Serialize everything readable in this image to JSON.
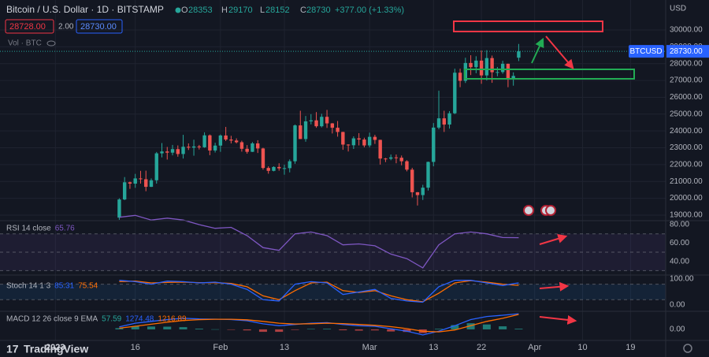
{
  "chart_data": {
    "type": "candlestick",
    "title": "Bitcoin / U.S. Dollar · 1D · BITSTAMP",
    "ohlc_labels": [
      "O",
      "H",
      "L",
      "C"
    ],
    "ohlc_values": [
      28353,
      29170,
      28152,
      28730
    ],
    "change": "+377.00 (+1.33%)",
    "sell_price": "28728.00",
    "spread": "2.00",
    "buy_price": "28730.00",
    "volume_label": "Vol · BTC",
    "price_unit": "USD",
    "symbol_label": "BTCUSD",
    "last_price_label": "28730.00",
    "up_color": "#26a69a",
    "down_color": "#ef5350",
    "grid": true,
    "xlim": [
      -9.4,
      115.6
    ],
    "xticks": [
      {
        "value": 1,
        "label": "2023"
      },
      16,
      {
        "value": 32,
        "label": "Feb"
      },
      {
        "value": 44,
        "label": "13"
      },
      {
        "value": 60,
        "label": "Mar"
      },
      {
        "value": 72,
        "label": "13"
      },
      {
        "value": 81,
        "label": "22"
      },
      {
        "value": 91,
        "label": "Apr"
      },
      {
        "value": 100,
        "label": "10"
      },
      {
        "value": 109,
        "label": "19"
      }
    ],
    "ylim": [
      18670,
      31780
    ],
    "yticks": [
      {
        "value": 19000,
        "label": "19000.00"
      },
      {
        "value": 20000,
        "label": "20000.00"
      },
      {
        "value": 21000,
        "label": "21000.00"
      },
      {
        "value": 22000,
        "label": "22000.00"
      },
      {
        "value": 23000,
        "label": "23000.00"
      },
      {
        "value": 24000,
        "label": "24000.00"
      },
      {
        "value": 25000,
        "label": "25000.00"
      },
      {
        "value": 26000,
        "label": "26000.00"
      },
      {
        "value": 27000,
        "label": "27000.00"
      },
      {
        "value": 28000,
        "label": "28000.00"
      },
      {
        "value": 29000,
        "label": "29000.00"
      },
      {
        "value": 30000,
        "label": "30000.00"
      }
    ],
    "x": [
      13,
      14,
      15,
      16,
      17,
      18,
      19,
      20,
      21,
      22,
      23,
      24,
      25,
      26,
      27,
      28,
      29,
      30,
      31,
      32,
      33,
      34,
      35,
      36,
      37,
      38,
      39,
      40,
      41,
      42,
      43,
      44,
      45,
      46,
      47,
      48,
      49,
      50,
      51,
      52,
      53,
      54,
      55,
      56,
      57,
      58,
      59,
      60,
      61,
      62,
      63,
      64,
      65,
      66,
      67,
      68,
      69,
      70,
      71,
      72,
      73,
      74,
      75,
      76,
      77,
      78,
      79,
      80,
      81,
      82,
      83,
      84,
      85,
      86,
      87,
      88
    ],
    "ohlc": [
      [
        18850,
        20000,
        18720,
        19930
      ],
      [
        19930,
        21260,
        19890,
        20950
      ],
      [
        20950,
        20990,
        20560,
        20870
      ],
      [
        20870,
        21450,
        20620,
        21180
      ],
      [
        21180,
        21630,
        20870,
        21130
      ],
      [
        21130,
        21640,
        20420,
        20680
      ],
      [
        20680,
        21180,
        20670,
        21070
      ],
      [
        21070,
        22750,
        20870,
        22670
      ],
      [
        22670,
        23280,
        22430,
        22780
      ],
      [
        22780,
        23050,
        22300,
        22710
      ],
      [
        22710,
        23170,
        22550,
        22920
      ],
      [
        22920,
        23140,
        22470,
        22630
      ],
      [
        22630,
        23770,
        22360,
        23060
      ],
      [
        23060,
        23260,
        22870,
        23010
      ],
      [
        23010,
        23480,
        22530,
        23080
      ],
      [
        23080,
        23170,
        22900,
        23030
      ],
      [
        23030,
        23920,
        23000,
        23740
      ],
      [
        23740,
        23790,
        22560,
        22840
      ],
      [
        22840,
        23300,
        22720,
        23130
      ],
      [
        23130,
        23790,
        22760,
        23730
      ],
      [
        23730,
        24240,
        23400,
        23490
      ],
      [
        23490,
        23710,
        23260,
        23430
      ],
      [
        23430,
        23560,
        23260,
        23330
      ],
      [
        23330,
        23420,
        22770,
        22940
      ],
      [
        22940,
        23160,
        22650,
        22760
      ],
      [
        22760,
        23340,
        22750,
        23260
      ],
      [
        23260,
        23450,
        22690,
        22960
      ],
      [
        22960,
        23000,
        21700,
        21800
      ],
      [
        21800,
        21900,
        21460,
        21630
      ],
      [
        21630,
        21900,
        21600,
        21860
      ],
      [
        21860,
        22080,
        21640,
        21780
      ],
      [
        21780,
        22000,
        21400,
        21790
      ],
      [
        21790,
        22310,
        21540,
        22200
      ],
      [
        22200,
        24380,
        22050,
        24330
      ],
      [
        24330,
        25200,
        23520,
        23520
      ],
      [
        23520,
        24890,
        23360,
        24570
      ],
      [
        24570,
        25000,
        24390,
        24630
      ],
      [
        24630,
        25120,
        24190,
        24280
      ],
      [
        24280,
        25020,
        24210,
        24840
      ],
      [
        24840,
        25250,
        24180,
        24450
      ],
      [
        24450,
        24470,
        23850,
        24190
      ],
      [
        24190,
        24590,
        23660,
        23940
      ],
      [
        23940,
        23950,
        22880,
        23190
      ],
      [
        23190,
        23210,
        22780,
        23150
      ],
      [
        23150,
        23680,
        22930,
        23560
      ],
      [
        23560,
        23870,
        23140,
        23490
      ],
      [
        23490,
        23600,
        23030,
        23140
      ],
      [
        23140,
        23900,
        23020,
        23650
      ],
      [
        23650,
        23770,
        23230,
        23470
      ],
      [
        23470,
        23480,
        22000,
        22360
      ],
      [
        22360,
        22400,
        22150,
        22350
      ],
      [
        22350,
        22600,
        22260,
        22430
      ],
      [
        22430,
        22600,
        22080,
        22410
      ],
      [
        22410,
        22540,
        21960,
        22200
      ],
      [
        22200,
        22260,
        21600,
        21700
      ],
      [
        21700,
        21810,
        20050,
        20360
      ],
      [
        20360,
        20370,
        19570,
        20190
      ],
      [
        20190,
        20800,
        19900,
        20630
      ],
      [
        20630,
        22180,
        20460,
        22160
      ],
      [
        22160,
        24470,
        21900,
        24200
      ],
      [
        24200,
        26390,
        24100,
        24750
      ],
      [
        24750,
        25200,
        23940,
        24380
      ],
      [
        24380,
        25180,
        24140,
        25050
      ],
      [
        25050,
        27700,
        25000,
        27460
      ],
      [
        27460,
        27700,
        26600,
        26980
      ],
      [
        26980,
        28350,
        26850,
        28040
      ],
      [
        28040,
        28500,
        27320,
        27790
      ],
      [
        27790,
        28440,
        27430,
        28180
      ],
      [
        28180,
        28780,
        26800,
        27300
      ],
      [
        27300,
        28800,
        27000,
        28330
      ],
      [
        28330,
        28480,
        26860,
        27490
      ],
      [
        27490,
        27800,
        27250,
        27500
      ],
      [
        27500,
        28170,
        27400,
        27990
      ],
      [
        27990,
        28000,
        26600,
        27140
      ],
      [
        27140,
        27480,
        26690,
        27270
      ],
      [
        28353,
        29170,
        28152,
        28730
      ]
    ],
    "indicators": {
      "x": [
        13,
        16,
        19,
        22,
        25,
        28,
        31,
        34,
        37,
        40,
        43,
        46,
        49,
        52,
        55,
        58,
        61,
        64,
        67,
        70,
        73,
        76,
        79,
        82,
        85,
        88
      ],
      "rsi": {
        "name": "RSI 14 close",
        "color": "#7e57c2",
        "ylim": [
          25.2,
          84.3
        ],
        "yticks": [
          {
            "value": 80,
            "label": "80.00"
          },
          {
            "value": 60,
            "label": "60.00"
          },
          {
            "value": 40,
            "label": "40.00"
          }
        ],
        "levels": [
          70,
          50,
          30
        ],
        "values": [
          88,
          90,
          85,
          87,
          85,
          80,
          76,
          77,
          68,
          55,
          52,
          70,
          72,
          68,
          58,
          59,
          57,
          48,
          43,
          33,
          58,
          70,
          72,
          70,
          66,
          65.76
        ]
      },
      "stoch": {
        "name": "Stoch 14 1 3",
        "ylim": [
          -25,
          115.6
        ],
        "yticks": [
          {
            "value": 100,
            "label": "100.00"
          },
          {
            "value": 0,
            "label": "0.00"
          }
        ],
        "levels": [
          80,
          20
        ],
        "k": {
          "color": "#2962ff",
          "values": [
            95,
            90,
            80,
            92,
            90,
            85,
            88,
            80,
            60,
            20,
            15,
            80,
            90,
            85,
            40,
            50,
            60,
            25,
            15,
            10,
            70,
            95,
            95,
            85,
            75,
            85.31
          ]
        },
        "d": {
          "color": "#ff6d00",
          "values": [
            90,
            92,
            85,
            87,
            88,
            86,
            86,
            83,
            70,
            35,
            20,
            55,
            85,
            88,
            55,
            48,
            55,
            35,
            20,
            12,
            45,
            85,
            94,
            88,
            80,
            75.54
          ]
        }
      },
      "macd": {
        "name": "MACD 12 26 close 9 EMA",
        "ylim": [
          -900,
          1470
        ],
        "yticks": [
          {
            "value": 0,
            "label": "0.00"
          }
        ],
        "histogram": {
          "color": "#26a69a",
          "neg_color": "#ef5350",
          "values": [
            100,
            250,
            230,
            220,
            180,
            60,
            10,
            -20,
            -80,
            -200,
            -200,
            -40,
            40,
            50,
            -70,
            -100,
            -80,
            -170,
            -210,
            -300,
            50,
            350,
            500,
            400,
            250,
            57.59
          ]
        },
        "macd": {
          "color": "#2962ff",
          "values": [
            200,
            500,
            650,
            800,
            900,
            850,
            830,
            800,
            700,
            450,
            300,
            400,
            500,
            550,
            400,
            300,
            250,
            50,
            -150,
            -450,
            -150,
            300,
            800,
            1050,
            1150,
            1274.48
          ]
        },
        "signal": {
          "color": "#ff6d00",
          "values": [
            100,
            250,
            420,
            580,
            720,
            790,
            820,
            820,
            780,
            650,
            500,
            440,
            460,
            500,
            470,
            400,
            330,
            220,
            60,
            -150,
            -200,
            -50,
            300,
            650,
            900,
            1216.89
          ]
        }
      }
    }
  }
}
